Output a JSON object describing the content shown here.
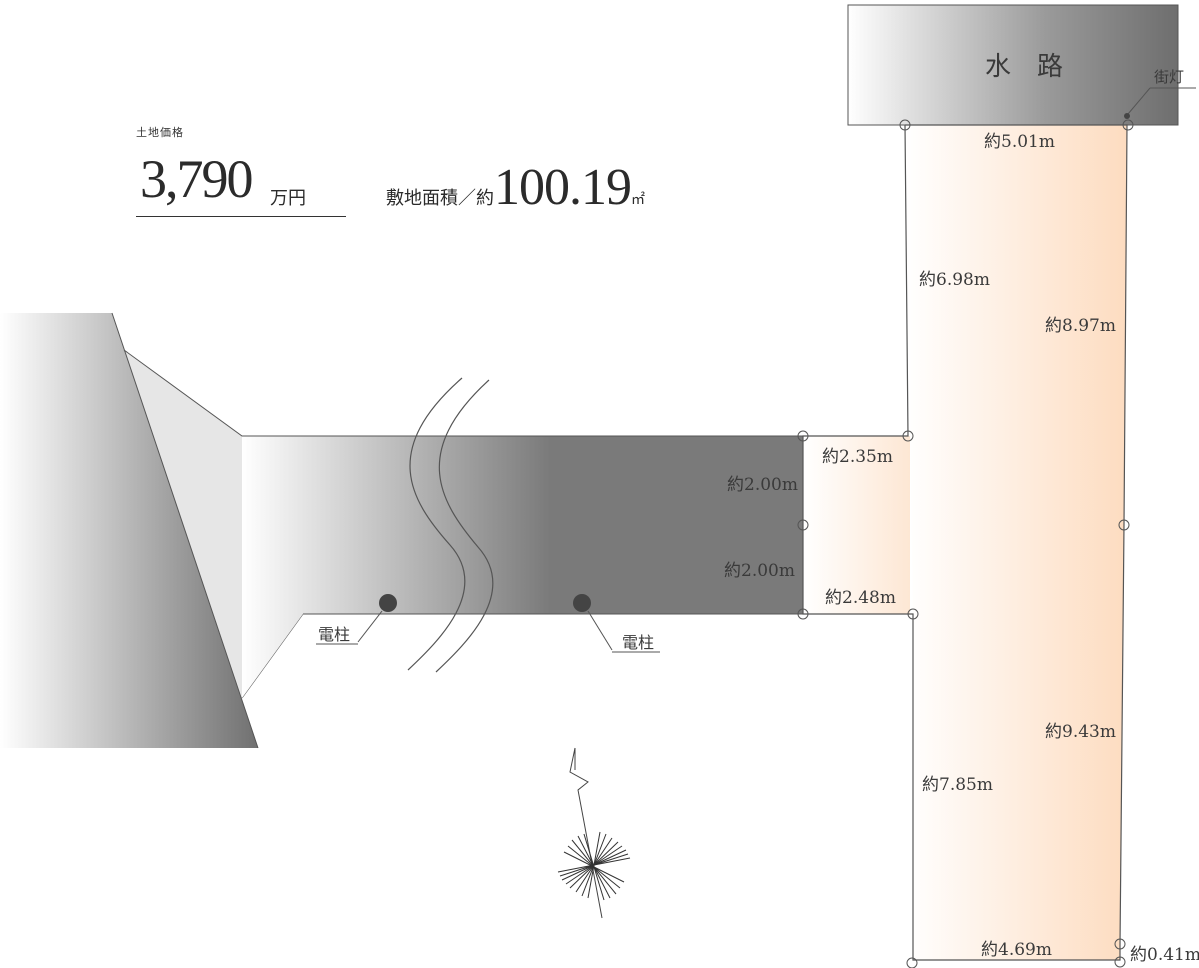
{
  "price": {
    "label": "土地価格",
    "value": "3,790",
    "unit": "万円"
  },
  "area": {
    "label": "敷地面積／約",
    "value": "100.19",
    "unit": "㎡"
  },
  "waterway": {
    "label": "水　路"
  },
  "streetlight": {
    "label": "街灯"
  },
  "poles": [
    {
      "label": "電柱"
    },
    {
      "label": "電柱"
    }
  ],
  "dimensions": {
    "top": "約5.01m",
    "left_upper": "約6.98m",
    "right_upper": "約8.97m",
    "step_upper": "約2.35m",
    "road_upper": "約2.00m",
    "road_lower": "約2.00m",
    "step_lower": "約2.48m",
    "right_lower": "約9.43m",
    "left_lower": "約7.85m",
    "bottom": "約4.69m",
    "corner": "約0.41m"
  },
  "colors": {
    "lot_fill_start": "#ffffff",
    "lot_fill_end": "#fddfc4",
    "road_dark": "#7a7a7a",
    "line": "#555555"
  }
}
